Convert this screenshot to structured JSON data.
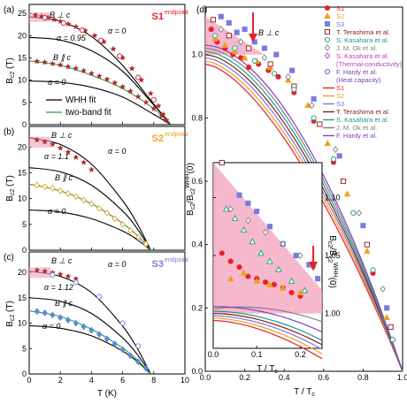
{
  "chart_data": [
    {
      "type": "scatter",
      "panel": "(a)",
      "sample": "S1",
      "sample_color": "#e8202a",
      "endpoint": "endpoint",
      "xlabel": "",
      "ylabel": "B_c2 (T)",
      "xlim": [
        0,
        10
      ],
      "ylim": [
        0,
        27
      ],
      "yticks": [
        0,
        5,
        10,
        15,
        20,
        25
      ],
      "xticks": [
        0,
        2,
        4,
        6,
        8,
        10
      ],
      "annotations": [
        "B ⊥ c",
        "α = 0",
        "α = 0.95",
        "B ∥ c",
        "α = 0"
      ],
      "legend": [
        "WHH fit",
        "two-band fit"
      ],
      "legend_colors": [
        "#000000",
        "#2a9d3a"
      ],
      "series": [
        {
          "name": "B ⊥ c",
          "marker": "star",
          "color": "#b3272d",
          "x": [
            0.4,
            0.8,
            1.2,
            1.6,
            2.0,
            2.5,
            3.0,
            3.6,
            4.2,
            4.8,
            5.4,
            6.0,
            6.6,
            7.2,
            7.8,
            8.3,
            8.6,
            8.8
          ],
          "y": [
            24.6,
            24.3,
            24.0,
            23.6,
            23.2,
            22.6,
            22.0,
            21.1,
            20.0,
            18.6,
            17.0,
            15.0,
            12.6,
            10.0,
            7.0,
            4.2,
            2.3,
            1.0
          ]
        },
        {
          "name": "B ⊥ c open",
          "marker": "circle-open",
          "color": "#b3272d",
          "x": [
            1.0,
            2.2,
            3.4,
            4.6,
            5.8,
            7.0,
            8.0
          ],
          "y": [
            24.0,
            22.8,
            21.2,
            18.9,
            15.4,
            10.6,
            5.6
          ]
        },
        {
          "name": "B ∥ c",
          "marker": "star",
          "color": "#b3272d",
          "x": [
            0.5,
            1.0,
            1.5,
            2.0,
            2.5,
            3.0,
            3.5,
            4.0,
            4.5,
            5.0,
            5.5,
            6.0,
            6.5,
            7.0,
            7.5,
            8.0,
            8.5,
            8.8
          ],
          "y": [
            14.2,
            14.0,
            13.7,
            13.4,
            13.0,
            12.6,
            12.1,
            11.5,
            10.9,
            10.2,
            9.4,
            8.5,
            7.5,
            6.3,
            5.0,
            3.6,
            2.0,
            1.0
          ]
        }
      ],
      "curves": [
        {
          "name": "α = 0 (B ⊥ c)",
          "color": "#000000",
          "x": [
            0,
            2,
            4,
            6,
            8,
            9.1
          ],
          "y": [
            24.2,
            23.2,
            19.8,
            13.3,
            4.6,
            0
          ]
        },
        {
          "name": "α = 0.95",
          "color": "#000000",
          "x": [
            0,
            2,
            4,
            6,
            8,
            9.1
          ],
          "y": [
            19.6,
            19.0,
            16.6,
            12.0,
            4.4,
            0
          ]
        },
        {
          "name": "α = 0 (B ∥ c)",
          "color": "#000000",
          "x": [
            0,
            2,
            4,
            6,
            8,
            9.1
          ],
          "y": [
            9.8,
            9.5,
            8.4,
            6.2,
            2.3,
            0
          ]
        },
        {
          "name": "two-band fit (B ∥ c)",
          "color": "#2a9d3a",
          "x": [
            0,
            2,
            4,
            6,
            8,
            9.1
          ],
          "y": [
            14.3,
            13.3,
            11.1,
            8.1,
            3.6,
            0
          ]
        }
      ]
    },
    {
      "type": "scatter",
      "panel": "(b)",
      "sample": "S2",
      "sample_color": "#f0a020",
      "endpoint": "endpoint",
      "xlabel": "",
      "ylabel": "B_c2 (T)",
      "xlim": [
        0,
        10
      ],
      "ylim": [
        0,
        24
      ],
      "yticks": [
        0,
        5,
        10,
        15,
        20
      ],
      "xticks": [
        0,
        2,
        4,
        6,
        8,
        10
      ],
      "annotations": [
        "B ⊥ c",
        "α = 0",
        "α = 1.1",
        "B ∥ c",
        "α = 0"
      ],
      "series": [
        {
          "name": "B ⊥ c",
          "marker": "star",
          "color": "#b3272d",
          "x": [
            0.5,
            1.0,
            1.5,
            2.0,
            2.5,
            3.0,
            3.5,
            4.0
          ],
          "y": [
            21.4,
            21.0,
            20.5,
            19.8,
            19.0,
            18.0,
            17.0,
            15.6
          ]
        },
        {
          "name": "B ∥ c",
          "marker": "diamond-open",
          "color": "#f0a020",
          "x": [
            0.5,
            1.0,
            1.5,
            2.0,
            2.5,
            3.0,
            3.5,
            4.0,
            4.5,
            5.0,
            5.5,
            6.0,
            6.5,
            7.0,
            7.5
          ],
          "y": [
            12.6,
            12.3,
            12.0,
            11.5,
            11.0,
            10.4,
            9.7,
            9.0,
            8.1,
            7.2,
            6.1,
            5.0,
            3.8,
            2.5,
            1.2
          ]
        }
      ],
      "curves": [
        {
          "name": "α = 0 (B ⊥ c)",
          "color": "#000000",
          "x": [
            0,
            2,
            4,
            6,
            7,
            7.8
          ],
          "y": [
            21.8,
            20.5,
            16.7,
            9.6,
            4.8,
            0
          ]
        },
        {
          "name": "α = 1.1",
          "color": "#000000",
          "x": [
            0,
            2,
            4,
            6,
            7,
            7.8
          ],
          "y": [
            16.0,
            15.2,
            12.6,
            7.6,
            3.9,
            0
          ]
        },
        {
          "name": "α = 0 (B ∥ c)",
          "color": "#000000",
          "x": [
            0,
            2,
            4,
            6,
            7,
            7.8
          ],
          "y": [
            7.8,
            7.4,
            6.1,
            3.7,
            1.9,
            0
          ]
        },
        {
          "name": "two-band fit (B ∥ c)",
          "color": "#2a9d3a",
          "x": [
            0,
            2,
            4,
            6,
            7,
            7.8
          ],
          "y": [
            12.8,
            11.5,
            9.0,
            5.2,
            2.7,
            0
          ]
        }
      ]
    },
    {
      "type": "scatter",
      "panel": "(c)",
      "sample": "S3",
      "sample_color": "#7a7ae0",
      "endpoint": "endpoint",
      "xlabel": "T (K)",
      "ylabel": "B_c2 (T)",
      "xlim": [
        0,
        10
      ],
      "ylim": [
        0,
        24
      ],
      "yticks": [
        0,
        5,
        10,
        15,
        20
      ],
      "xticks": [
        0,
        2,
        4,
        6,
        8,
        10
      ],
      "annotations": [
        "B ⊥ c",
        "α = 0",
        "α = 1.12",
        "B ∥ c",
        "α = 0"
      ],
      "series": [
        {
          "name": "B ⊥ c",
          "marker": "star",
          "color": "#b3272d",
          "x": [
            0.5,
            1.0,
            1.5,
            2.0,
            2.5,
            3.0
          ],
          "y": [
            20.4,
            20.2,
            19.9,
            19.6,
            19.2,
            18.7
          ]
        },
        {
          "name": "B ⊥ c open",
          "marker": "circle-open",
          "color": "#7a7ae0",
          "x": [
            1.5,
            3.0,
            4.5,
            6.0,
            7.0
          ],
          "y": [
            19.5,
            18.0,
            15.2,
            10.0,
            5.5
          ]
        },
        {
          "name": "B ∥ c",
          "marker": "diamond",
          "color": "#5a8ad8",
          "x": [
            0.5,
            1.0,
            1.5,
            2.0,
            2.5,
            3.0,
            3.5,
            4.0,
            4.5,
            5.0,
            5.5,
            6.0,
            6.5,
            7.0,
            7.5
          ],
          "y": [
            12.3,
            12.0,
            11.6,
            11.1,
            10.6,
            10.0,
            9.3,
            8.6,
            7.8,
            6.9,
            5.9,
            4.8,
            3.6,
            2.4,
            1.1
          ]
        }
      ],
      "curves": [
        {
          "name": "α = 0 (B ⊥ c)",
          "color": "#000000",
          "x": [
            0,
            2,
            4,
            6,
            7,
            7.8
          ],
          "y": [
            20.2,
            19.2,
            16.0,
            9.4,
            4.7,
            0
          ]
        },
        {
          "name": "α = 1.12",
          "color": "#000000",
          "x": [
            0,
            2,
            4,
            6,
            7,
            7.8
          ],
          "y": [
            15.0,
            14.3,
            11.9,
            7.1,
            3.6,
            0
          ]
        },
        {
          "name": "α = 0 (B ∥ c)",
          "color": "#000000",
          "x": [
            0,
            2,
            4,
            6,
            7,
            7.8
          ],
          "y": [
            9.5,
            9.0,
            7.5,
            4.5,
            2.3,
            0
          ]
        },
        {
          "name": "two-band fit (B ∥ c)",
          "color": "#2a9d3a",
          "x": [
            0,
            2,
            4,
            6,
            7,
            7.8
          ],
          "y": [
            12.4,
            11.3,
            8.8,
            5.1,
            2.6,
            0
          ]
        }
      ]
    },
    {
      "type": "scatter",
      "panel": "(d)",
      "xlabel": "T / T_c",
      "ylabel": "B_c2 / B_c2^WHH(0)",
      "xlim": [
        0,
        1.0
      ],
      "ylim": [
        0,
        1.15
      ],
      "xticks": [
        0.0,
        0.2,
        0.4,
        0.6,
        0.8,
        1.0
      ],
      "yticks": [
        0.0,
        0.2,
        0.4,
        0.6,
        0.8,
        1.0
      ],
      "annotation": "B ⊥ c",
      "legend": [
        "S1",
        "S2",
        "S3",
        "T. Terashima et al.",
        "S. Kasahara et al.",
        "J. M. Ok et al.",
        "S. Kasahara et al.",
        "(Thermal-conductivity)",
        "F. Hardy et al.",
        "(Heat capacity)",
        "S1",
        "S2",
        "S3",
        "T. Terashima et al.",
        "S. Kasahara et al.",
        "J. M. Ok et al.",
        "F. Hardy et al."
      ],
      "legend_colors": [
        "#e8202a",
        "#f0a020",
        "#7a7ae0",
        "#8b1a1a",
        "#17a08a",
        "#808080",
        "#c040c0",
        "#c040c0",
        "#8040c0",
        "#8040c0",
        "#e8202a",
        "#f0a020",
        "#7a7ae0",
        "#8b1a1a",
        "#17a08a",
        "#808080",
        "#8040c0"
      ],
      "series": [
        {
          "name": "S1",
          "color": "#e8202a",
          "marker": "circle",
          "x": [
            0.03,
            0.06,
            0.1,
            0.14,
            0.18,
            0.22,
            0.27,
            0.32,
            0.37,
            0.45,
            0.55,
            0.65,
            0.75,
            0.85,
            0.95
          ],
          "y": [
            1.08,
            1.04,
            1.02,
            1.0,
            0.99,
            0.96,
            0.97,
            0.95,
            0.93,
            0.88,
            0.79,
            0.66,
            0.5,
            0.31,
            0.1
          ]
        },
        {
          "name": "S2",
          "color": "#f0a020",
          "marker": "triangle",
          "x": [
            0.05,
            0.1,
            0.15,
            0.2,
            0.26,
            0.33,
            0.42,
            0.52,
            0.62,
            0.72,
            0.82,
            0.92
          ],
          "y": [
            1.05,
            1.03,
            1.01,
            0.99,
            0.98,
            0.96,
            0.92,
            0.84,
            0.72,
            0.56,
            0.38,
            0.17
          ]
        },
        {
          "name": "S3",
          "color": "#7a7ae0",
          "marker": "square",
          "x": [
            0.08,
            0.12,
            0.16,
            0.2,
            0.25,
            0.3,
            0.36,
            0.44,
            0.55,
            0.68,
            0.8,
            0.92
          ],
          "y": [
            1.12,
            1.1,
            1.07,
            1.08,
            1.04,
            1.02,
            1.0,
            0.95,
            0.86,
            0.68,
            0.46,
            0.2
          ]
        },
        {
          "name": "T. Terashima et al.",
          "color": "#8b1a1a",
          "marker": "square-open",
          "x": [
            0.04,
            0.12,
            0.22,
            0.33,
            0.45,
            0.58,
            0.7,
            0.82,
            0.94
          ],
          "y": [
            1.11,
            1.06,
            1.02,
            0.97,
            0.9,
            0.78,
            0.6,
            0.4,
            0.14
          ]
        },
        {
          "name": "S. Kasahara et al.",
          "color": "#17a08a",
          "marker": "circle-open",
          "x": [
            0.05,
            0.15,
            0.25,
            0.35,
            0.45,
            0.55,
            0.65,
            0.75,
            0.85,
            0.95
          ],
          "y": [
            1.06,
            1.02,
            0.98,
            0.94,
            0.89,
            0.8,
            0.67,
            0.5,
            0.32,
            0.1
          ]
        },
        {
          "name": "J. M. Ok et al.",
          "color": "#808080",
          "marker": "diamond-open",
          "x": [
            0.08,
            0.18,
            0.3,
            0.42,
            0.54,
            0.66,
            0.78,
            0.9
          ],
          "y": [
            1.08,
            1.04,
            0.99,
            0.93,
            0.84,
            0.7,
            0.5,
            0.26
          ]
        }
      ],
      "inset": {
        "xlabel": "T / T_c",
        "ylabel": "B_c2 / B_c2^WHH(0)",
        "xlim": [
          0,
          0.25
        ],
        "ylim": [
          0.97,
          1.13
        ],
        "xticks": [
          0.0,
          0.1,
          0.2
        ],
        "yticks": [
          1.0,
          1.05,
          1.1
        ],
        "series": [
          {
            "name": "S1",
            "color": "#e8202a",
            "marker": "circle",
            "x": [
              0.02,
              0.04,
              0.06,
              0.08,
              0.1,
              0.12,
              0.14,
              0.16,
              0.18,
              0.2
            ],
            "y": [
              1.052,
              1.045,
              1.04,
              1.032,
              1.03,
              1.027,
              1.025,
              1.022,
              1.018,
              1.015
            ]
          },
          {
            "name": "S2",
            "color": "#f0a020",
            "marker": "triangle",
            "x": [
              0.04,
              0.07,
              0.1,
              0.13,
              0.16,
              0.2
            ],
            "y": [
              1.03,
              1.035,
              1.028,
              1.025,
              1.022,
              1.018
            ]
          },
          {
            "name": "S3",
            "color": "#7a7ae0",
            "marker": "square",
            "x": [
              0.06,
              0.08,
              0.1,
              0.13,
              0.16,
              0.19,
              0.22,
              0.24
            ],
            "y": [
              1.102,
              1.095,
              1.088,
              1.075,
              1.06,
              1.05,
              1.042,
              1.03
            ]
          },
          {
            "name": "T. Terashima et al.",
            "color": "#8b1a1a",
            "marker": "square-open",
            "x": [
              0.02
            ],
            "y": [
              1.13
            ]
          },
          {
            "name": "S. Kasahara et al.",
            "color": "#17a08a",
            "marker": "triangle-open",
            "x": [
              0.03,
              0.05,
              0.07,
              0.09,
              0.11,
              0.13,
              0.15,
              0.18,
              0.21
            ],
            "y": [
              1.09,
              1.082,
              1.072,
              1.062,
              1.052,
              1.045,
              1.038,
              1.028,
              1.02
            ]
          },
          {
            "name": "J. M. Ok et al.",
            "color": "#808080",
            "marker": "diamond-open",
            "x": [
              0.04,
              0.08,
              0.12,
              0.16,
              0.2,
              0.23
            ],
            "y": [
              1.09,
              1.08,
              1.07,
              1.06,
              1.05,
              1.04
            ]
          }
        ]
      }
    }
  ]
}
